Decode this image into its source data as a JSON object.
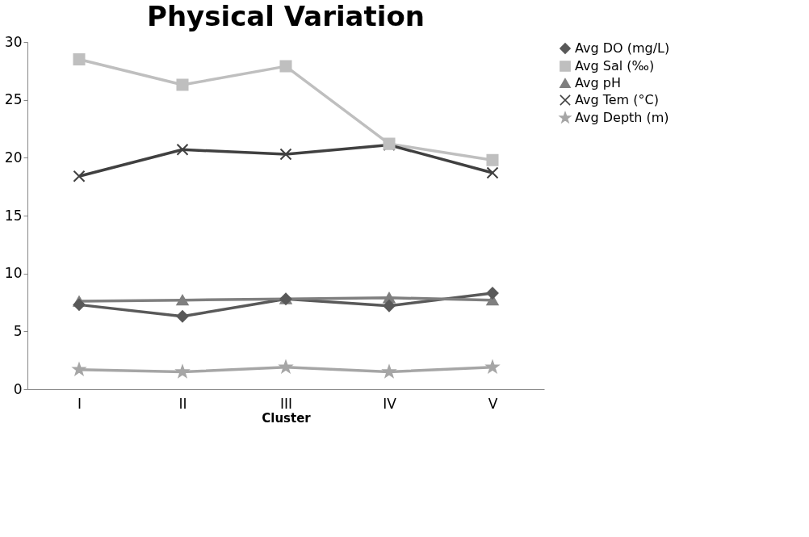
{
  "chart_data": {
    "type": "line",
    "title": "Physical Variation",
    "xlabel": "Cluster",
    "categories": [
      "I",
      "II",
      "III",
      "IV",
      "V"
    ],
    "ylim": [
      0,
      30
    ],
    "yticks": [
      0,
      5,
      10,
      15,
      20,
      25,
      30
    ],
    "grid": false,
    "legend": "right",
    "series": [
      {
        "name": "Avg DO (mg/L)",
        "color": "#595959",
        "marker": "diamond",
        "values": [
          7.3,
          6.3,
          7.8,
          7.2,
          8.3
        ]
      },
      {
        "name": "Avg Sal (‰)",
        "color": "#bfbfbf",
        "marker": "square",
        "values": [
          28.5,
          26.3,
          27.9,
          21.2,
          19.8
        ]
      },
      {
        "name": "Avg pH",
        "color": "#7f7f7f",
        "marker": "triangle",
        "values": [
          7.6,
          7.7,
          7.8,
          7.9,
          7.7
        ]
      },
      {
        "name": "Avg Tem (°C)",
        "color": "#404040",
        "marker": "cross",
        "values": [
          18.4,
          20.7,
          20.3,
          21.1,
          18.7
        ]
      },
      {
        "name": "Avg Depth (m)",
        "color": "#a6a6a6",
        "marker": "star",
        "values": [
          1.7,
          1.5,
          1.9,
          1.5,
          1.9
        ]
      }
    ]
  }
}
